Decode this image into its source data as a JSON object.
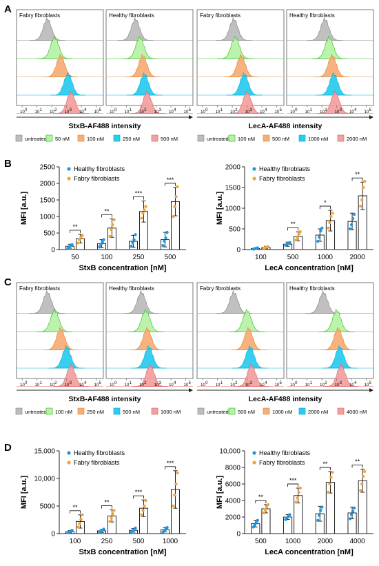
{
  "chart_data": [
    {
      "id": "A",
      "label": "A",
      "type": "histogram",
      "panels": [
        {
          "title": "Fabry fibroblasts"
        },
        {
          "title": "Healthy fibroblasts"
        },
        {
          "title": "Fabry fibroblasts"
        },
        {
          "title": "Healthy fibroblasts"
        }
      ],
      "xticks": [
        "10",
        "10",
        "10",
        "10",
        "10",
        "10"
      ],
      "xtick_exps": [
        "0",
        "1",
        "2",
        "3",
        "4",
        "5"
      ],
      "xlabels": [
        "StxB-AF488 intensity",
        "LecA-AF488 intensity"
      ],
      "legends": [
        {
          "entries": [
            {
              "name": "untreated",
              "color": "#bdbdbd"
            },
            {
              "name": "50 nM",
              "color": "#b8f2a8"
            },
            {
              "name": "100 nM",
              "color": "#f5ae78"
            },
            {
              "name": "250 nM",
              "color": "#2ccbef"
            },
            {
              "name": "500 nM",
              "color": "#f3a0a0"
            }
          ]
        },
        {
          "entries": [
            {
              "name": "untreated",
              "color": "#bdbdbd"
            },
            {
              "name": "100 nM",
              "color": "#b8f2a8"
            },
            {
              "name": "500 nM",
              "color": "#f5ae78"
            },
            {
              "name": "1000 nM",
              "color": "#2ccbef"
            },
            {
              "name": "2000 nM",
              "color": "#f3a0a0"
            }
          ]
        }
      ],
      "peaks_log": [
        [
          1.7,
          2.2,
          2.6,
          3.1,
          3.3
        ],
        [
          1.6,
          1.9,
          2.1,
          2.2,
          2.4
        ],
        [
          2.1,
          2.2,
          2.6,
          2.8,
          3.0
        ],
        [
          2.2,
          2.5,
          2.7,
          2.8,
          2.9
        ]
      ]
    },
    {
      "id": "B",
      "label": "B",
      "type": "bar",
      "charts": [
        {
          "categories": [
            "50",
            "100",
            "250",
            "500"
          ],
          "xlabel": "StxB concentration [nM]",
          "ylabel": "MFI [a.u.]",
          "ylim": [
            0,
            2500
          ],
          "yticks": [
            "0",
            "500",
            "1000",
            "1500",
            "2000",
            "2500"
          ],
          "ytick_values": [
            0,
            500,
            1000,
            1500,
            2000,
            2500
          ],
          "series": [
            {
              "name": "Healthy fibroblasts",
              "color": "#2196dc",
              "values": [
                100,
                180,
                250,
                300
              ],
              "errors": [
                60,
                120,
                180,
                220
              ],
              "points": [
                [
                  40,
                  80,
                  120,
                  150
                ],
                [
                  80,
                  150,
                  230,
                  300
                ],
                [
                  100,
                  200,
                  300,
                  450
                ],
                [
                  120,
                  250,
                  350,
                  520
                ]
              ]
            },
            {
              "name": "Fabry fibroblasts",
              "color": "#f2a33a",
              "values": [
                330,
                650,
                1150,
                1450
              ],
              "errors": [
                130,
                280,
                320,
                430
              ],
              "points": [
                [
                  200,
                  300,
                  380,
                  430
                ],
                [
                  400,
                  600,
                  750,
                  900
                ],
                [
                  950,
                  1100,
                  1200,
                  1300
                ],
                [
                  1000,
                  1300,
                  1600,
                  1900
                ]
              ]
            }
          ],
          "significance": [
            "**",
            "**",
            "***",
            "***"
          ]
        },
        {
          "categories": [
            "100",
            "500",
            "1000",
            "2000"
          ],
          "xlabel": "LecA concentration [nM]",
          "ylabel": "MFI [a.u.]",
          "ylim": [
            0,
            2000
          ],
          "yticks": [
            "0",
            "500",
            "1000",
            "1500",
            "2000"
          ],
          "ytick_values": [
            0,
            500,
            1000,
            1500,
            2000
          ],
          "series": [
            {
              "name": "Healthy fibroblasts",
              "color": "#2196dc",
              "values": [
                25,
                130,
                350,
                680
              ],
              "errors": [
                20,
                50,
                150,
                200
              ],
              "points": [
                [
                  10,
                  20,
                  30,
                  40
                ],
                [
                  100,
                  130,
                  150,
                  170
                ],
                [
                  200,
                  300,
                  450,
                  520
                ],
                [
                  500,
                  600,
                  750,
                  850
                ]
              ]
            },
            {
              "name": "Fabry fibroblasts",
              "color": "#f2a33a",
              "values": [
                50,
                320,
                700,
                1300
              ],
              "errors": [
                30,
                110,
                250,
                330
              ],
              "points": [
                [
                  30,
                  50,
                  60,
                  70
                ],
                [
                  230,
                  300,
                  380,
                  430
                ],
                [
                  520,
                  650,
                  800,
                  880
                ],
                [
                  1050,
                  1200,
                  1500,
                  1650
                ]
              ]
            }
          ],
          "significance": [
            "",
            "**",
            "*",
            "**"
          ]
        }
      ]
    },
    {
      "id": "C",
      "label": "C",
      "type": "histogram",
      "panels": [
        {
          "title": "Fabry fibroblasts"
        },
        {
          "title": "Healthy fibroblasts"
        },
        {
          "title": "Fabry fibroblasts"
        },
        {
          "title": "Healthy fibroblasts"
        }
      ],
      "xticks": [
        "10",
        "10",
        "10",
        "10",
        "10",
        "10"
      ],
      "xtick_exps": [
        "0",
        "1",
        "2",
        "3",
        "4",
        "5"
      ],
      "xlabels": [
        "StxB-AF488 intensity",
        "LecA-AF488 intensity"
      ],
      "legends": [
        {
          "entries": [
            {
              "name": "untreated",
              "color": "#bdbdbd"
            },
            {
              "name": "100 nM",
              "color": "#b8f2a8"
            },
            {
              "name": "250 nM",
              "color": "#f5ae78"
            },
            {
              "name": "500 nM",
              "color": "#2ccbef"
            },
            {
              "name": "1000 nM",
              "color": "#f3a0a0"
            }
          ]
        },
        {
          "entries": [
            {
              "name": "untreated",
              "color": "#bdbdbd"
            },
            {
              "name": "500 nM",
              "color": "#b8f2a8"
            },
            {
              "name": "1000 nM",
              "color": "#f5ae78"
            },
            {
              "name": "2000 nM",
              "color": "#2ccbef"
            },
            {
              "name": "4000 nM",
              "color": "#f3a0a0"
            }
          ]
        }
      ],
      "peaks_log": [
        [
          1.7,
          2.2,
          2.6,
          3.0,
          3.3
        ],
        [
          2.0,
          2.3,
          2.4,
          2.5,
          2.6
        ],
        [
          2.1,
          3.0,
          3.1,
          3.2,
          3.3
        ],
        [
          2.1,
          3.0,
          3.1,
          3.2,
          3.3
        ]
      ]
    },
    {
      "id": "D",
      "label": "D",
      "type": "bar",
      "charts": [
        {
          "categories": [
            "100",
            "250",
            "500",
            "1000"
          ],
          "xlabel": "StxB concentration [nM]",
          "ylabel": "MFI [a.u.]",
          "ylim": [
            0,
            15000
          ],
          "yticks": [
            "0",
            "5000",
            "10,000",
            "15,000"
          ],
          "ytick_values": [
            0,
            5000,
            10000,
            15000
          ],
          "series": [
            {
              "name": "Healthy fibroblasts",
              "color": "#2196dc",
              "values": [
                350,
                500,
                600,
                700
              ],
              "errors": [
                200,
                300,
                350,
                400
              ],
              "points": [
                [
                  150,
                  250,
                  400,
                  600
                ],
                [
                  200,
                  350,
                  600,
                  800
                ],
                [
                  250,
                  450,
                  700,
                  1000
                ],
                [
                  300,
                  500,
                  800,
                  1100
                ]
              ]
            },
            {
              "name": "Fabry fibroblasts",
              "color": "#f2a33a",
              "values": [
                2200,
                3200,
                4600,
                8000
              ],
              "errors": [
                1200,
                1100,
                1500,
                3400
              ],
              "points": [
                [
                  1200,
                  1800,
                  2600,
                  3400
                ],
                [
                  2200,
                  2800,
                  3600,
                  4200
                ],
                [
                  3400,
                  4200,
                  5000,
                  6000
                ],
                [
                  5000,
                  7000,
                  9000,
                  11000
                ]
              ]
            }
          ],
          "significance": [
            "**",
            "**",
            "***",
            "***"
          ]
        },
        {
          "categories": [
            "500",
            "1000",
            "2000",
            "4000"
          ],
          "xlabel": "LecA concentration [nM]",
          "ylabel": "MFI [a.u.]",
          "ylim": [
            0,
            10000
          ],
          "yticks": [
            "0",
            "2000",
            "4000",
            "6000",
            "8000",
            "10,000"
          ],
          "ytick_values": [
            0,
            2000,
            4000,
            6000,
            8000,
            10000
          ],
          "series": [
            {
              "name": "Healthy fibroblasts",
              "color": "#2196dc",
              "values": [
                1200,
                2000,
                2400,
                2500
              ],
              "errors": [
                400,
                300,
                900,
                700
              ],
              "points": [
                [
                  800,
                  1000,
                  1300,
                  1600
                ],
                [
                  1700,
                  1900,
                  2100,
                  2300
                ],
                [
                  1600,
                  2200,
                  2800,
                  3200
                ],
                [
                  1800,
                  2300,
                  2700,
                  3100
                ]
              ]
            },
            {
              "name": "Fabry fibroblasts",
              "color": "#f2a33a",
              "values": [
                3000,
                4600,
                6200,
                6400
              ],
              "errors": [
                500,
                900,
                1300,
                1400
              ],
              "points": [
                [
                  2500,
                  2900,
                  3200,
                  3500
                ],
                [
                  3800,
                  4300,
                  5000,
                  5500
                ],
                [
                  5000,
                  6000,
                  6800,
                  7400
                ],
                [
                  5200,
                  6000,
                  6900,
                  7500
                ]
              ]
            }
          ],
          "significance": [
            "**",
            "***",
            "**",
            "**"
          ]
        }
      ]
    }
  ]
}
